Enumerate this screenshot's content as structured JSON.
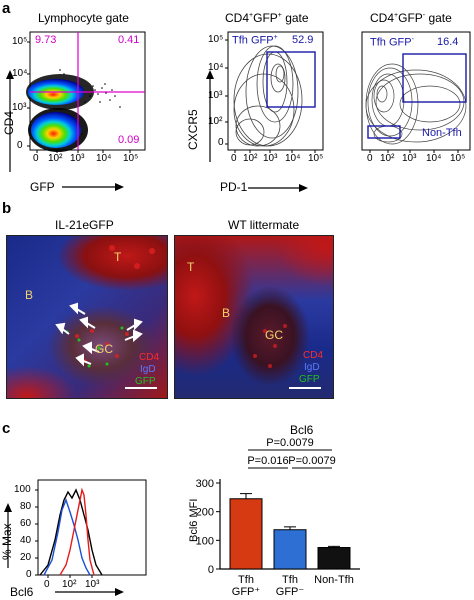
{
  "panel_a": {
    "letter": "a",
    "plot1": {
      "title": "Lymphocyte gate",
      "xlabel": "GFP",
      "ylabel": "CD4",
      "xticks": [
        "0",
        "10²",
        "10³",
        "10⁴",
        "10⁵"
      ],
      "yticks": [
        "0",
        "10³",
        "10⁴",
        "10⁵"
      ],
      "q_tl": "9.73",
      "q_tr": "0.41",
      "q_br": "0.09"
    },
    "plot2": {
      "title_base": "CD4",
      "title_sup1": "+",
      "title_mid": "GFP",
      "title_sup2": "+",
      "title_end": " gate",
      "xlabel": "PD-1",
      "ylabel": "CXCR5",
      "xticks": [
        "0",
        "10²",
        "10³",
        "10⁴",
        "10⁵"
      ],
      "yticks": [
        "0",
        "10²",
        "10³",
        "10⁴",
        "10⁵"
      ],
      "gate_label": "Tfh GFP",
      "gate_sup": "+",
      "gate_value": "52.9"
    },
    "plot3": {
      "title_base": "CD4",
      "title_sup1": "+",
      "title_mid": "GFP",
      "title_sup2": "-",
      "title_end": " gate",
      "xticks": [
        "0",
        "10²",
        "10³",
        "10⁴",
        "10⁵"
      ],
      "gate_label": "Tfh GFP",
      "gate_sup": "-",
      "gate_value": "16.4",
      "nontfh_label": "Non-Tfh"
    }
  },
  "panel_b": {
    "letter": "b",
    "left_title": "IL-21eGFP",
    "right_title": "WT littermate",
    "labels_left": {
      "t": "T",
      "b": "B",
      "gc": "GC"
    },
    "labels_right": {
      "t": "T",
      "b": "B",
      "gc": "GC"
    },
    "legend": {
      "cd4": "CD4",
      "igd": "IgD",
      "gfp": "GFP"
    },
    "colors": {
      "cd4": "#ff2a2a",
      "igd": "#3b5bff",
      "gfp": "#21c021",
      "label": "#f2d36b"
    }
  },
  "panel_c": {
    "letter": "c",
    "histogram": {
      "ylabel": "% Max",
      "xlabel": "Bcl6",
      "yticks": [
        "0",
        "20",
        "40",
        "60",
        "80",
        "100"
      ],
      "xticks": [
        "0",
        "10²",
        "10³"
      ]
    },
    "chart_data": {
      "type": "bar",
      "title": "Bcl6",
      "ylabel": "Bcl6 MFI",
      "categories": [
        "Tfh GFP⁺",
        "Tfh GFP⁻",
        "Non-Tfh"
      ],
      "category_lines": [
        [
          "Tfh",
          "GFP⁺"
        ],
        [
          "Tfh",
          "GFP⁻"
        ],
        [
          "Non-Tfh",
          ""
        ]
      ],
      "values": [
        245,
        137,
        75
      ],
      "errors": [
        18,
        10,
        4
      ],
      "colors": [
        "#d63a12",
        "#2d6fd3",
        "#111111"
      ],
      "ylim": [
        0,
        300
      ],
      "yticks": [
        0,
        100,
        200,
        300
      ],
      "annotations": [
        "P=0.0079",
        "P=0.016",
        "P=0.0079"
      ]
    }
  }
}
